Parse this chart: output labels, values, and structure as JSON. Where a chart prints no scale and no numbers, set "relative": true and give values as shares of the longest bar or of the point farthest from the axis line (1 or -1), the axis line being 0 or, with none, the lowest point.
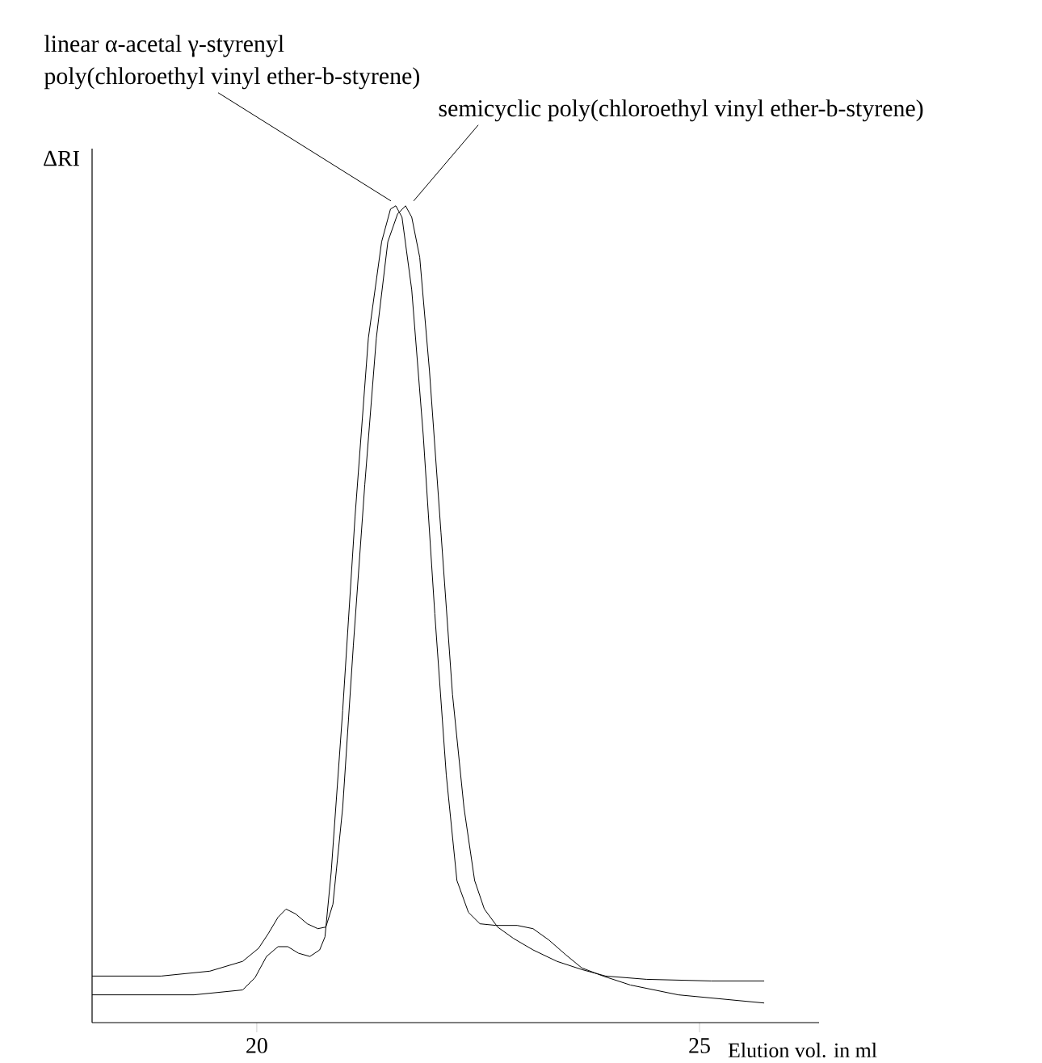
{
  "chart_data": {
    "type": "line",
    "relative": true,
    "xlabel": "Elution vol. in ml",
    "ylabel": "ΔRI",
    "xlim": [
      18.14,
      26.35
    ],
    "xticks": [
      20,
      25
    ],
    "marker": "none",
    "line_style": "solid",
    "grid": false,
    "series": [
      {
        "color": "#000000",
        "x": [
          18.14,
          19.29,
          19.84,
          19.98,
          20.11,
          20.24,
          20.35,
          20.47,
          20.6,
          20.71,
          20.77,
          20.84,
          20.97,
          21.11,
          21.26,
          21.41,
          21.51,
          21.57,
          21.64,
          21.75,
          21.88,
          22.01,
          22.14,
          22.26,
          22.39,
          22.52,
          22.7,
          22.94,
          23.12,
          23.3,
          23.49,
          23.67,
          23.91,
          24.22,
          24.76,
          25.73
        ],
        "values": [
          0.034,
          0.034,
          0.04,
          0.055,
          0.081,
          0.093,
          0.093,
          0.085,
          0.081,
          0.089,
          0.105,
          0.184,
          0.382,
          0.62,
          0.838,
          0.956,
          0.996,
          1,
          0.986,
          0.897,
          0.719,
          0.501,
          0.303,
          0.174,
          0.135,
          0.121,
          0.119,
          0.119,
          0.115,
          0.101,
          0.083,
          0.067,
          0.057,
          0.046,
          0.034,
          0.024
        ]
      },
      {
        "color": "#000000",
        "x": [
          18.14,
          18.92,
          19.47,
          19.84,
          20.02,
          20.13,
          20.24,
          20.33,
          20.44,
          20.57,
          20.69,
          20.78,
          20.86,
          20.97,
          21.09,
          21.22,
          21.35,
          21.48,
          21.59,
          21.68,
          21.75,
          21.84,
          21.95,
          22.08,
          22.21,
          22.34,
          22.46,
          22.57,
          22.72,
          22.9,
          23.12,
          23.39,
          23.67,
          23.94,
          24.4,
          25.13,
          25.73
        ],
        "values": [
          0.057,
          0.057,
          0.063,
          0.075,
          0.091,
          0.109,
          0.129,
          0.139,
          0.133,
          0.121,
          0.115,
          0.117,
          0.145,
          0.263,
          0.461,
          0.659,
          0.838,
          0.956,
          0.99,
          1,
          0.986,
          0.937,
          0.798,
          0.6,
          0.402,
          0.263,
          0.174,
          0.139,
          0.117,
          0.103,
          0.089,
          0.075,
          0.065,
          0.057,
          0.053,
          0.051,
          0.051
        ]
      }
    ],
    "annotations": [
      {
        "text": "linear α-acetal γ-styrenyl\npoly(chloroethyl vinyl ether-b-styrene)",
        "x": 21.57,
        "y": 1
      },
      {
        "text": "semicyclic poly(chloroethyl vinyl ether-b-styrene)",
        "x": 21.68,
        "y": 1
      }
    ]
  }
}
